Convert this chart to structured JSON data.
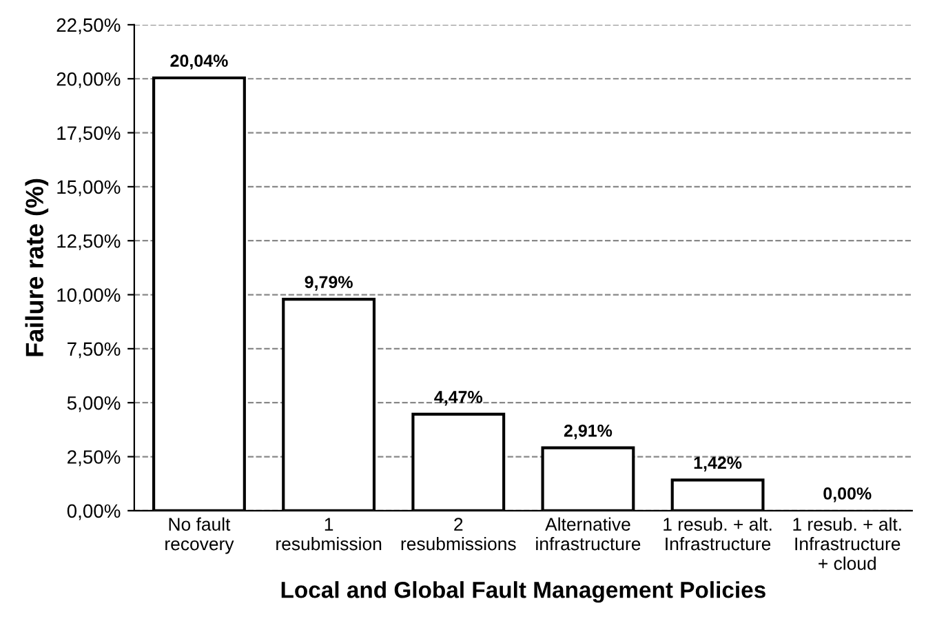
{
  "chart_data": {
    "type": "bar",
    "xlabel": "Local and Global Fault Management Policies",
    "ylabel": "Failure rate (%)",
    "categories": [
      "No fault\nrecovery",
      "1\nresubmission",
      "2\nresubmissions",
      "Alternative\ninfrastructure",
      "1 resub. + alt.\nInfrastructure",
      "1 resub. + alt.\nInfrastructure\n+ cloud"
    ],
    "values": [
      20.04,
      9.79,
      4.47,
      2.91,
      1.42,
      0.0
    ],
    "value_labels": [
      "20,04%",
      "9,79%",
      "4,47%",
      "2,91%",
      "1,42%",
      "0,00%"
    ],
    "color": "#ffffff",
    "ylim": [
      0,
      22.5
    ],
    "yticks": [
      {
        "value": 0,
        "label": "0,00%"
      },
      {
        "value": 2.5,
        "label": "2,50%"
      },
      {
        "value": 5,
        "label": "5,00%"
      },
      {
        "value": 7.5,
        "label": "7,50%"
      },
      {
        "value": 10,
        "label": "10,00%"
      },
      {
        "value": 12.5,
        "label": "12,50%"
      },
      {
        "value": 15,
        "label": "15,00%"
      },
      {
        "value": 17.5,
        "label": "17,50%"
      },
      {
        "value": 20,
        "label": "20,00%"
      },
      {
        "value": 22.5,
        "label": "22,50%"
      }
    ],
    "grid": "y"
  }
}
